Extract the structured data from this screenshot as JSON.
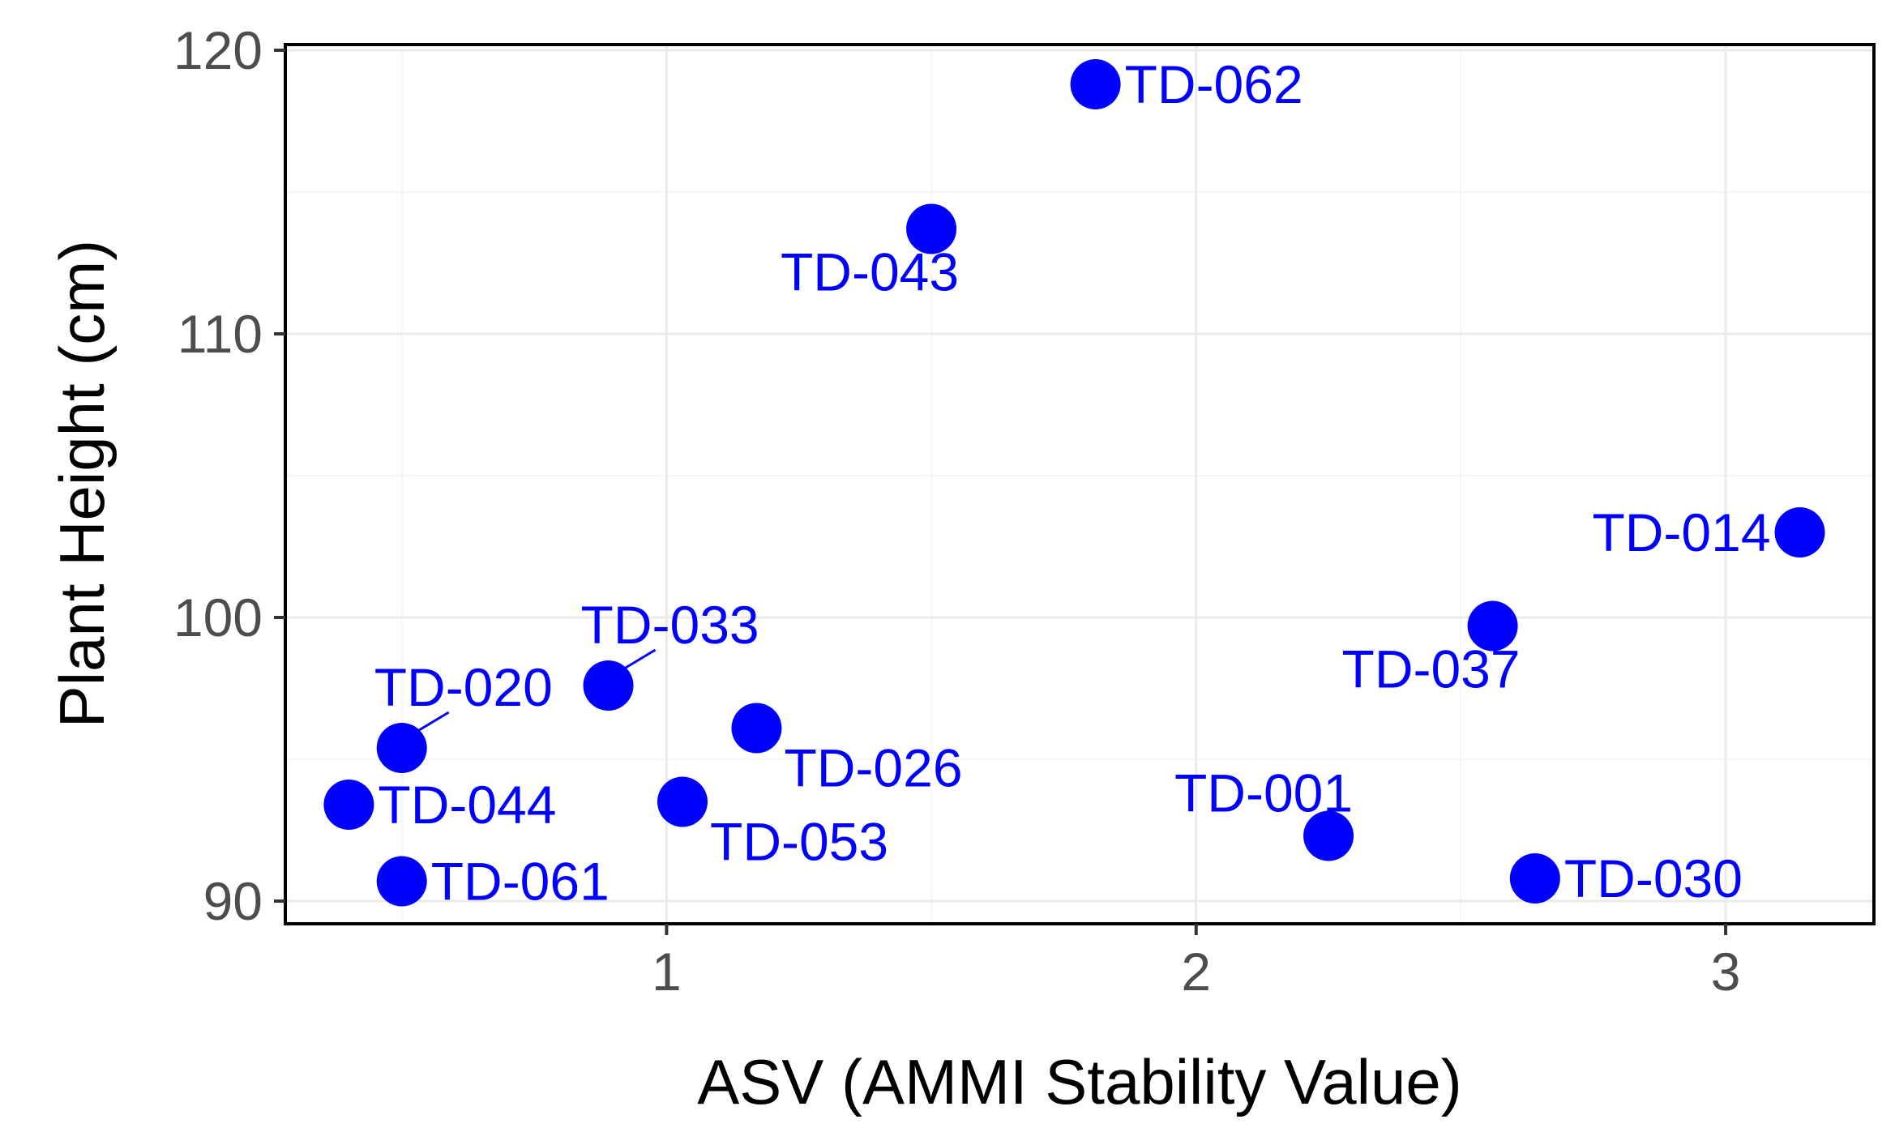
{
  "chart_data": {
    "type": "scatter",
    "title": "",
    "xlabel": "ASV (AMMI Stability Value)",
    "ylabel": "Plant Height (cm)",
    "xlim": [
      0.28,
      3.28
    ],
    "ylim": [
      89.2,
      120.2
    ],
    "x_ticks": [
      1,
      2,
      3
    ],
    "y_ticks": [
      90,
      100,
      110,
      120
    ],
    "grid": true,
    "legend": "none",
    "point_color": "#0000ff",
    "series": [
      {
        "name": "genotypes",
        "points": [
          {
            "label": "TD-062",
            "x": 1.81,
            "y": 118.8,
            "label_pos": "right"
          },
          {
            "label": "TD-043",
            "x": 1.5,
            "y": 113.7,
            "label_pos": "below-left"
          },
          {
            "label": "TD-014",
            "x": 3.14,
            "y": 103.0,
            "label_pos": "left"
          },
          {
            "label": "TD-037",
            "x": 2.56,
            "y": 99.7,
            "label_pos": "below-left"
          },
          {
            "label": "TD-033",
            "x": 0.89,
            "y": 97.6,
            "label_pos": "above-right"
          },
          {
            "label": "TD-020",
            "x": 0.5,
            "y": 95.4,
            "label_pos": "above-right"
          },
          {
            "label": "TD-026",
            "x": 1.17,
            "y": 96.1,
            "label_pos": "below-right"
          },
          {
            "label": "TD-044",
            "x": 0.4,
            "y": 93.4,
            "label_pos": "right"
          },
          {
            "label": "TD-053",
            "x": 1.03,
            "y": 93.5,
            "label_pos": "below-right"
          },
          {
            "label": "TD-001",
            "x": 2.25,
            "y": 92.3,
            "label_pos": "above-left"
          },
          {
            "label": "TD-061",
            "x": 0.5,
            "y": 90.7,
            "label_pos": "right"
          },
          {
            "label": "TD-030",
            "x": 2.64,
            "y": 90.8,
            "label_pos": "right"
          }
        ]
      }
    ]
  }
}
